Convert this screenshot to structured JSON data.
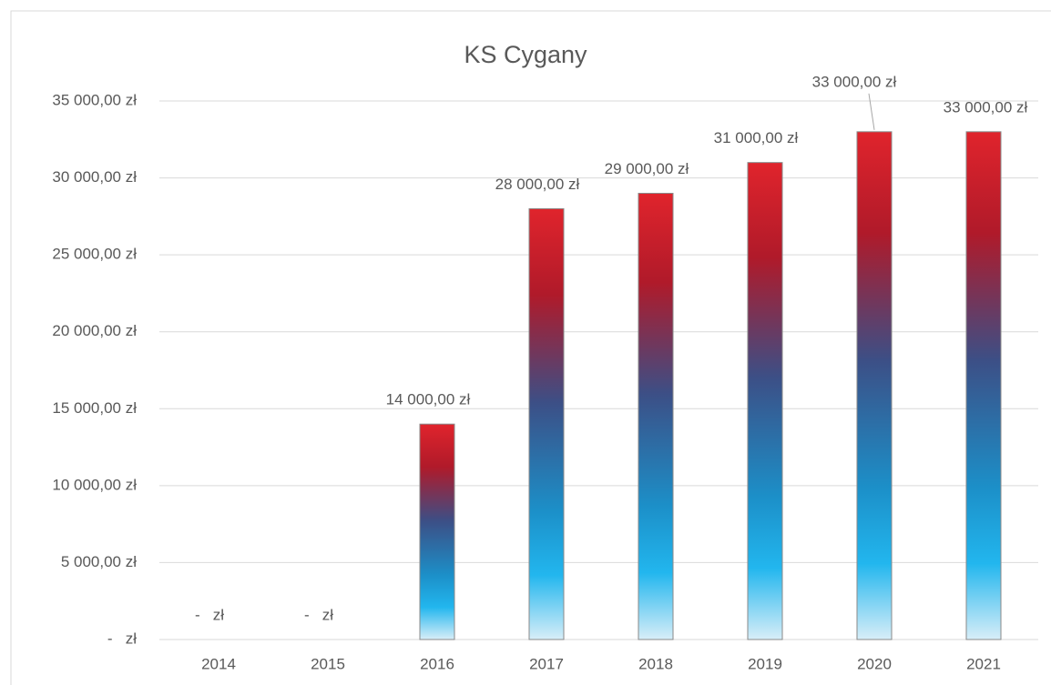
{
  "chart_data": {
    "type": "bar",
    "title": "KS Cygany",
    "categories": [
      "2014",
      "2015",
      "2016",
      "2017",
      "2018",
      "2019",
      "2020",
      "2021"
    ],
    "values": [
      0,
      0,
      14000,
      28000,
      29000,
      31000,
      33000,
      33000
    ],
    "value_labels": [
      "-   zł",
      "-   zł",
      "14 000,00 zł",
      "28 000,00 zł",
      "29 000,00 zł",
      "31 000,00 zł",
      "33 000,00 zł",
      "33 000,00 zł"
    ],
    "ylim": [
      0,
      35000
    ],
    "yticks": [
      {
        "value": 0,
        "label": "-   zł"
      },
      {
        "value": 5000,
        "label": "5 000,00 zł"
      },
      {
        "value": 10000,
        "label": "10 000,00 zł"
      },
      {
        "value": 15000,
        "label": "15 000,00 zł"
      },
      {
        "value": 20000,
        "label": "20 000,00 zł"
      },
      {
        "value": 25000,
        "label": "25 000,00 zł"
      },
      {
        "value": 30000,
        "label": "30 000,00 zł"
      },
      {
        "value": 35000,
        "label": "35 000,00 zł"
      }
    ],
    "grid": true
  }
}
